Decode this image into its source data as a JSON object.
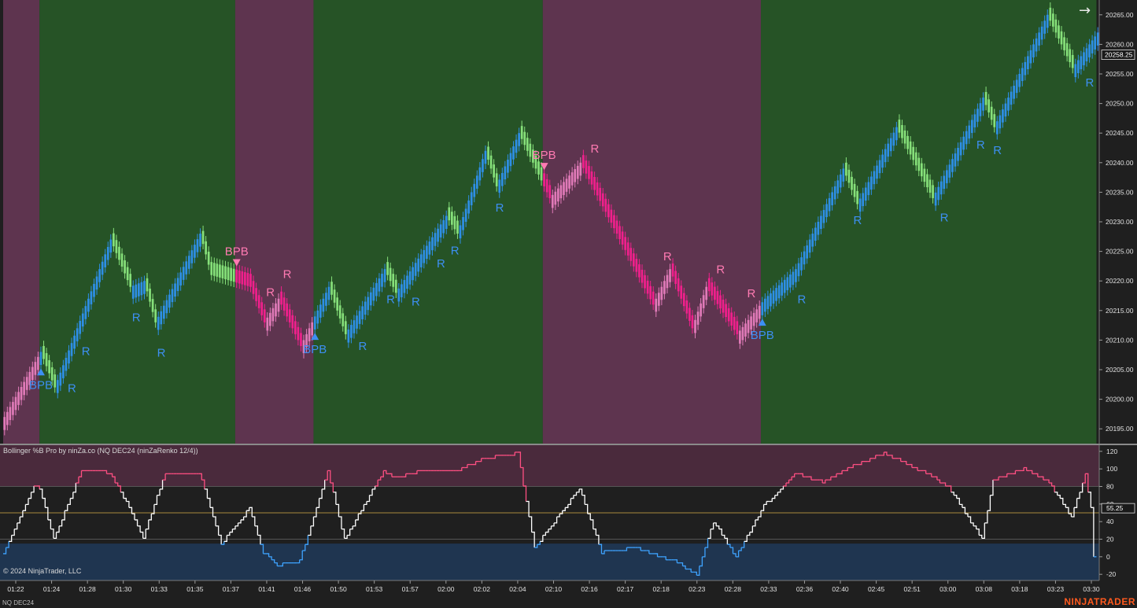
{
  "app": {
    "brand": "NINJATRADER",
    "instrument_label": "NQ DEC24",
    "copyright": "© 2024 NinjaTrader, LLC",
    "scroll_icon": "right-arrow-icon"
  },
  "colors": {
    "bull_zone": "#265326",
    "bear_zone": "#5e344f",
    "bar_trend_up": "#2e8fe6",
    "bar_pullback_up": "#86e07a",
    "bar_trend_down": "#f0208c",
    "bar_pullback_down": "#e07ab8",
    "signal_up": "#3d8ff2",
    "signal_down": "#ff7ab2",
    "ind_line_mid": "#ffffff",
    "ind_line_high": "#ff4f82",
    "ind_line_low": "#3ea3ff",
    "upper_band_fill": "#4a2a3c",
    "lower_band_fill": "#1f3550"
  },
  "chart_data": [
    {
      "type": "bar",
      "name_ref": "price",
      "y_ticks": [
        "20195.00",
        "20200.00",
        "20205.00",
        "20210.00",
        "20215.00",
        "20220.00",
        "20225.00",
        "20230.00",
        "20235.00",
        "20240.00",
        "20245.00",
        "20250.00",
        "20255.00",
        "20260.00",
        "20265.00"
      ],
      "y_range": [
        20192.5,
        20267.5
      ],
      "last_price_label": "20258.25",
      "last_price": 20258.25,
      "x_ticks": [
        "01:22",
        "01:24",
        "01:28",
        "01:30",
        "01:33",
        "01:35",
        "01:37",
        "01:41",
        "01:46",
        "01:50",
        "01:53",
        "01:57",
        "02:00",
        "02:02",
        "02:04",
        "02:10",
        "02:16",
        "02:17",
        "02:18",
        "02:23",
        "02:28",
        "02:33",
        "02:36",
        "02:40",
        "02:45",
        "02:51",
        "03:00",
        "03:08",
        "03:18",
        "03:23",
        "03:30"
      ],
      "zones": [
        {
          "from": 0,
          "to": 13,
          "trend": "bear"
        },
        {
          "from": 13,
          "to": 83,
          "trend": "bull"
        },
        {
          "from": 83,
          "to": 111,
          "trend": "bear"
        },
        {
          "from": 111,
          "to": 193,
          "trend": "bull"
        },
        {
          "from": 193,
          "to": 271,
          "trend": "bear"
        },
        {
          "from": 271,
          "to": 391,
          "trend": "bull"
        }
      ],
      "pivots": [
        [
          0,
          20197
        ],
        [
          13,
          20208
        ],
        [
          18,
          20202
        ],
        [
          38,
          20227
        ],
        [
          45,
          20219
        ],
        [
          50,
          20220
        ],
        [
          54,
          20213
        ],
        [
          70,
          20228
        ],
        [
          74,
          20221
        ],
        [
          88,
          20219
        ],
        [
          93,
          20213
        ],
        [
          98,
          20217
        ],
        [
          106,
          20209
        ],
        [
          116,
          20219
        ],
        [
          122,
          20211
        ],
        [
          136,
          20222
        ],
        [
          140,
          20218
        ],
        [
          158,
          20231
        ],
        [
          162,
          20228
        ],
        [
          172,
          20242
        ],
        [
          176,
          20236
        ],
        [
          184,
          20245
        ],
        [
          195,
          20234
        ],
        [
          206,
          20240
        ],
        [
          232,
          20216
        ],
        [
          238,
          20222
        ],
        [
          246,
          20212
        ],
        [
          251,
          20219
        ],
        [
          262,
          20211
        ],
        [
          272,
          20217
        ],
        [
          283,
          20222
        ],
        [
          300,
          20239
        ],
        [
          305,
          20233
        ],
        [
          319,
          20246
        ],
        [
          332,
          20234
        ],
        [
          350,
          20251
        ],
        [
          354,
          20246
        ],
        [
          373,
          20265
        ],
        [
          382,
          20256
        ],
        [
          391,
          20262
        ]
      ],
      "signals": [
        {
          "bar": 13,
          "label": "BPB",
          "dir": "up"
        },
        {
          "bar": 22,
          "label": "R",
          "dir": "up"
        },
        {
          "bar": 27,
          "label": "R",
          "dir": "up"
        },
        {
          "bar": 45,
          "label": "R",
          "dir": "up"
        },
        {
          "bar": 54,
          "label": "R",
          "dir": "up"
        },
        {
          "bar": 83,
          "label": "BPB",
          "dir": "down"
        },
        {
          "bar": 93,
          "label": "R",
          "dir": "down"
        },
        {
          "bar": 99,
          "label": "R",
          "dir": "down"
        },
        {
          "bar": 111,
          "label": "BPB",
          "dir": "up"
        },
        {
          "bar": 126,
          "label": "R",
          "dir": "up"
        },
        {
          "bar": 136,
          "label": "R",
          "dir": "up"
        },
        {
          "bar": 145,
          "label": "R",
          "dir": "up"
        },
        {
          "bar": 154,
          "label": "R",
          "dir": "up"
        },
        {
          "bar": 159,
          "label": "R",
          "dir": "up"
        },
        {
          "bar": 175,
          "label": "R",
          "dir": "up"
        },
        {
          "bar": 193,
          "label": "BPB",
          "dir": "down"
        },
        {
          "bar": 209,
          "label": "R",
          "dir": "down"
        },
        {
          "bar": 235,
          "label": "R",
          "dir": "down"
        },
        {
          "bar": 254,
          "label": "R",
          "dir": "down"
        },
        {
          "bar": 265,
          "label": "R",
          "dir": "down"
        },
        {
          "bar": 271,
          "label": "BPB",
          "dir": "up"
        },
        {
          "bar": 283,
          "label": "R",
          "dir": "up"
        },
        {
          "bar": 303,
          "label": "R",
          "dir": "up"
        },
        {
          "bar": 334,
          "label": "R",
          "dir": "up"
        },
        {
          "bar": 347,
          "label": "R",
          "dir": "up"
        },
        {
          "bar": 353,
          "label": "R",
          "dir": "up"
        },
        {
          "bar": 386,
          "label": "R",
          "dir": "up"
        }
      ]
    },
    {
      "type": "line",
      "title": "Bollinger %B Pro by ninZa.co (NQ DEC24 (ninZaRenko 12/4))",
      "y_ticks": [
        "-20",
        "0",
        "20",
        "40",
        "60",
        "80",
        "100",
        "120"
      ],
      "y_range": [
        -27,
        127
      ],
      "upper_band": 80,
      "mid_line": 50,
      "lower_band": 15,
      "last_value_label": "55.25",
      "last_value": 55.25,
      "pivots": [
        [
          0,
          5
        ],
        [
          11,
          80
        ],
        [
          13,
          78
        ],
        [
          18,
          20
        ],
        [
          28,
          98
        ],
        [
          38,
          96
        ],
        [
          45,
          56
        ],
        [
          50,
          22
        ],
        [
          58,
          96
        ],
        [
          70,
          96
        ],
        [
          78,
          15
        ],
        [
          88,
          55
        ],
        [
          93,
          5
        ],
        [
          98,
          -10
        ],
        [
          106,
          -5
        ],
        [
          116,
          98
        ],
        [
          122,
          20
        ],
        [
          136,
          98
        ],
        [
          140,
          90
        ],
        [
          150,
          98
        ],
        [
          162,
          98
        ],
        [
          172,
          112
        ],
        [
          184,
          118
        ],
        [
          190,
          10
        ],
        [
          206,
          78
        ],
        [
          214,
          5
        ],
        [
          226,
          10
        ],
        [
          240,
          -5
        ],
        [
          248,
          -20
        ],
        [
          254,
          40
        ],
        [
          262,
          0
        ],
        [
          272,
          58
        ],
        [
          283,
          95
        ],
        [
          293,
          85
        ],
        [
          300,
          98
        ],
        [
          315,
          118
        ],
        [
          330,
          95
        ],
        [
          338,
          80
        ],
        [
          350,
          20
        ],
        [
          354,
          88
        ],
        [
          365,
          100
        ],
        [
          374,
          85
        ],
        [
          382,
          45
        ],
        [
          387,
          95
        ],
        [
          389,
          55
        ]
      ]
    }
  ]
}
